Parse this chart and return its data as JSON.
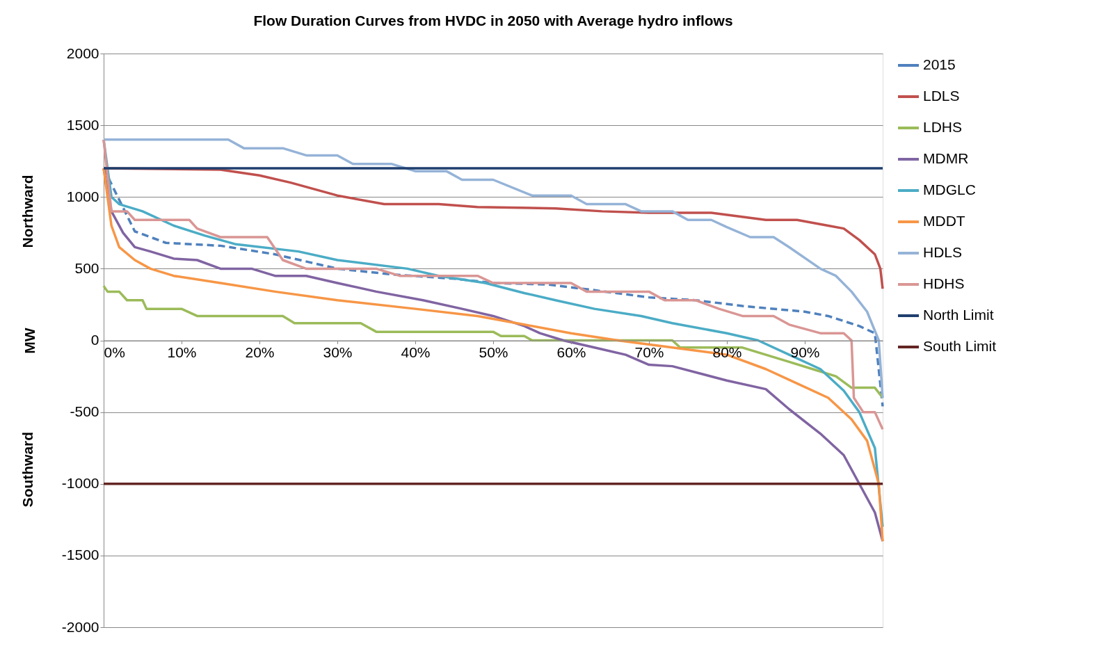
{
  "chart_data": {
    "type": "line",
    "title": "Flow Duration  Curves from HVDC in 2050 with Average hydro  inflows",
    "ylabel": "MW",
    "annotations": [
      "Northward",
      "Southward"
    ],
    "xlim": [
      0,
      100
    ],
    "xticks": [
      {
        "value": 0,
        "label": "0%"
      },
      {
        "value": 10,
        "label": "10%"
      },
      {
        "value": 20,
        "label": "20%"
      },
      {
        "value": 30,
        "label": "30%"
      },
      {
        "value": 40,
        "label": "40%"
      },
      {
        "value": 50,
        "label": "50%"
      },
      {
        "value": 60,
        "label": "60%"
      },
      {
        "value": 70,
        "label": "70%"
      },
      {
        "value": 80,
        "label": "80%"
      },
      {
        "value": 90,
        "label": "90%"
      }
    ],
    "ylim": [
      -2000,
      2000
    ],
    "yticks": [
      -2000,
      -1500,
      -1000,
      -500,
      0,
      500,
      1000,
      1500,
      2000
    ],
    "grid": "y",
    "legend": "right",
    "marker": "none",
    "series": [
      {
        "name": "2015",
        "color": "#4f81bd",
        "line_style": "dashed",
        "x": [
          0,
          4,
          8,
          15,
          22,
          30,
          37,
          45,
          50,
          57,
          63,
          70,
          76,
          82,
          90,
          93,
          97,
          99,
          100
        ],
        "values": [
          1200,
          760,
          680,
          660,
          600,
          500,
          460,
          430,
          400,
          390,
          350,
          300,
          280,
          240,
          200,
          170,
          100,
          50,
          -460
        ]
      },
      {
        "name": "LDLS",
        "color": "#c0504d",
        "x": [
          0,
          15,
          20,
          24,
          30,
          36,
          43,
          48,
          58,
          64,
          70,
          78,
          85,
          89,
          93,
          95,
          97,
          99,
          99.7,
          100
        ],
        "values": [
          1200,
          1190,
          1150,
          1100,
          1010,
          950,
          950,
          930,
          920,
          900,
          890,
          890,
          840,
          840,
          800,
          780,
          700,
          600,
          500,
          360
        ]
      },
      {
        "name": "LDHS",
        "color": "#9bbb59",
        "x": [
          0,
          0.5,
          2,
          3,
          5,
          5.5,
          10,
          12,
          23,
          24.5,
          33,
          35,
          50,
          51,
          54,
          55,
          73,
          74,
          82,
          85,
          88,
          91,
          94,
          96,
          99,
          100
        ],
        "values": [
          380,
          340,
          340,
          280,
          280,
          220,
          220,
          170,
          170,
          120,
          120,
          60,
          60,
          30,
          30,
          0,
          0,
          -50,
          -50,
          -100,
          -150,
          -200,
          -250,
          -330,
          -330,
          -400
        ]
      },
      {
        "name": "MDMR",
        "color": "#8064a2",
        "x": [
          0,
          1,
          2.5,
          4,
          6,
          9,
          12,
          15,
          19,
          22,
          26,
          30,
          35,
          41,
          46,
          50,
          54,
          56,
          59,
          63,
          67,
          70,
          73,
          80,
          85,
          88,
          92,
          95,
          97,
          99,
          100
        ],
        "values": [
          1200,
          900,
          750,
          650,
          620,
          570,
          560,
          500,
          500,
          450,
          450,
          400,
          340,
          280,
          220,
          170,
          100,
          50,
          0,
          -50,
          -100,
          -170,
          -180,
          -280,
          -340,
          -480,
          -650,
          -800,
          -1000,
          -1200,
          -1400
        ]
      },
      {
        "name": "MDGLC",
        "color": "#4bacc6",
        "x": [
          0,
          1,
          2,
          5,
          9,
          13,
          17,
          25,
          30,
          39,
          43,
          49,
          54,
          58,
          63,
          69,
          73,
          80,
          84,
          88,
          92,
          95,
          97,
          99,
          100
        ],
        "values": [
          1400,
          1000,
          950,
          900,
          800,
          730,
          670,
          620,
          560,
          500,
          450,
          400,
          330,
          280,
          220,
          170,
          120,
          50,
          0,
          -100,
          -200,
          -350,
          -500,
          -750,
          -1300
        ]
      },
      {
        "name": "MDDT",
        "color": "#f79646",
        "x": [
          0,
          1,
          2,
          4,
          6,
          9,
          15,
          22,
          30,
          40,
          48,
          54,
          60,
          66,
          73,
          80,
          85,
          89,
          93,
          96,
          98,
          99.5,
          100
        ],
        "values": [
          1200,
          800,
          650,
          560,
          500,
          450,
          400,
          340,
          280,
          220,
          170,
          110,
          50,
          0,
          -50,
          -100,
          -200,
          -300,
          -400,
          -550,
          -700,
          -1000,
          -1400
        ]
      },
      {
        "name": "HDLS",
        "color": "#95b3d7",
        "x": [
          0,
          16,
          18,
          23,
          26,
          30,
          32,
          37,
          40,
          44,
          46,
          50,
          55,
          60,
          62,
          67,
          69,
          73,
          75,
          78,
          80,
          83,
          86,
          88,
          92,
          94,
          96,
          98,
          99.5,
          100
        ],
        "values": [
          1400,
          1400,
          1340,
          1340,
          1290,
          1290,
          1230,
          1230,
          1180,
          1180,
          1120,
          1120,
          1010,
          1010,
          950,
          950,
          900,
          900,
          840,
          840,
          790,
          720,
          720,
          650,
          500,
          450,
          340,
          200,
          0,
          -400
        ]
      },
      {
        "name": "HDHS",
        "color": "#d99694",
        "x": [
          0,
          1,
          3,
          4,
          11,
          12,
          15,
          21,
          23,
          26,
          35,
          38,
          48,
          50,
          60,
          62,
          70,
          72,
          76,
          79,
          82,
          86,
          88,
          92,
          95,
          96,
          96.3,
          97.5,
          99,
          100
        ],
        "values": [
          1400,
          900,
          900,
          840,
          840,
          780,
          720,
          720,
          560,
          500,
          500,
          450,
          450,
          400,
          400,
          340,
          340,
          280,
          280,
          220,
          170,
          170,
          110,
          50,
          50,
          0,
          -400,
          -500,
          -500,
          -620
        ]
      },
      {
        "name": "North Limit",
        "color": "#1f3f6e",
        "x": [
          0,
          100
        ],
        "values": [
          1200,
          1200
        ]
      },
      {
        "name": "South Limit",
        "color": "#632523",
        "x": [
          0,
          100
        ],
        "values": [
          -1000,
          -1000
        ]
      }
    ]
  }
}
